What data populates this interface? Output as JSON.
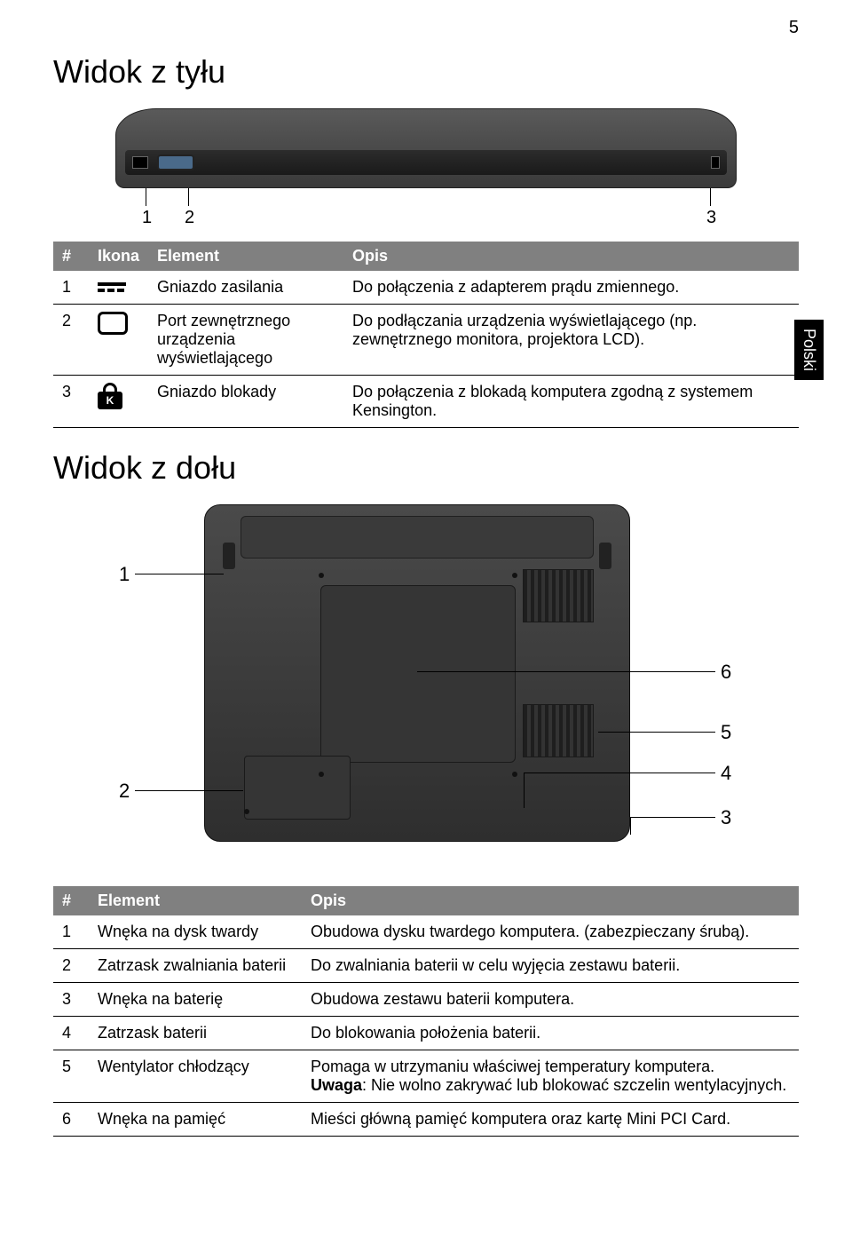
{
  "page": {
    "number": "5"
  },
  "sideTab": "Polski",
  "headings": {
    "rear": "Widok z tyłu",
    "bottom": "Widok z dołu"
  },
  "table1": {
    "headers": {
      "num": "#",
      "icon": "Ikona",
      "element": "Element",
      "desc": "Opis"
    },
    "rows": [
      {
        "num": "1",
        "element": "Gniazdo zasilania",
        "desc": "Do połączenia z adapterem prądu zmiennego."
      },
      {
        "num": "2",
        "element": "Port zewnętrznego urządzenia wyświetlającego",
        "desc": "Do podłączania urządzenia wyświetlającego (np. zewnętrznego monitora, projektora LCD)."
      },
      {
        "num": "3",
        "element": "Gniazdo blokady",
        "desc": "Do połączenia z blokadą komputera zgodną z systemem Kensington."
      }
    ]
  },
  "rearCallouts": {
    "c1": "1",
    "c2": "2",
    "c3": "3"
  },
  "bottomCallouts": {
    "c1": "1",
    "c2": "2",
    "c3": "3",
    "c4": "4",
    "c5": "5",
    "c6": "6"
  },
  "lockLetter": "K",
  "table2": {
    "headers": {
      "num": "#",
      "element": "Element",
      "desc": "Opis"
    },
    "rows": [
      {
        "num": "1",
        "element": "Wnęka na dysk twardy",
        "desc": "Obudowa dysku twardego komputera. (zabezpieczany śrubą)."
      },
      {
        "num": "2",
        "element": "Zatrzask zwalniania baterii",
        "desc": "Do zwalniania baterii w celu wyjęcia zestawu baterii."
      },
      {
        "num": "3",
        "element": "Wnęka na baterię",
        "desc": "Obudowa zestawu baterii komputera."
      },
      {
        "num": "4",
        "element": "Zatrzask baterii",
        "desc": "Do blokowania położenia baterii."
      },
      {
        "num": "5",
        "element": "Wentylator chłodzący",
        "desc": "Pomaga w utrzymaniu właściwej temperatury komputera.\nUwaga: Nie wolno zakrywać lub blokować szczelin wentylacyjnych."
      },
      {
        "num": "6",
        "element": "Wnęka na pamięć",
        "desc": "Mieści główną pamięć komputera oraz kartę Mini PCI Card."
      }
    ]
  },
  "boldWord": "Uwaga",
  "colors": {
    "headerBg": "#808080",
    "headerText": "#ffffff",
    "border": "#000000",
    "tabBg": "#000000",
    "tabText": "#ffffff",
    "pageBg": "#ffffff"
  },
  "typography": {
    "heading_fontsize": 36,
    "body_fontsize": 18,
    "callout_fontsize": 22,
    "font_family": "Arial, Helvetica, sans-serif"
  }
}
